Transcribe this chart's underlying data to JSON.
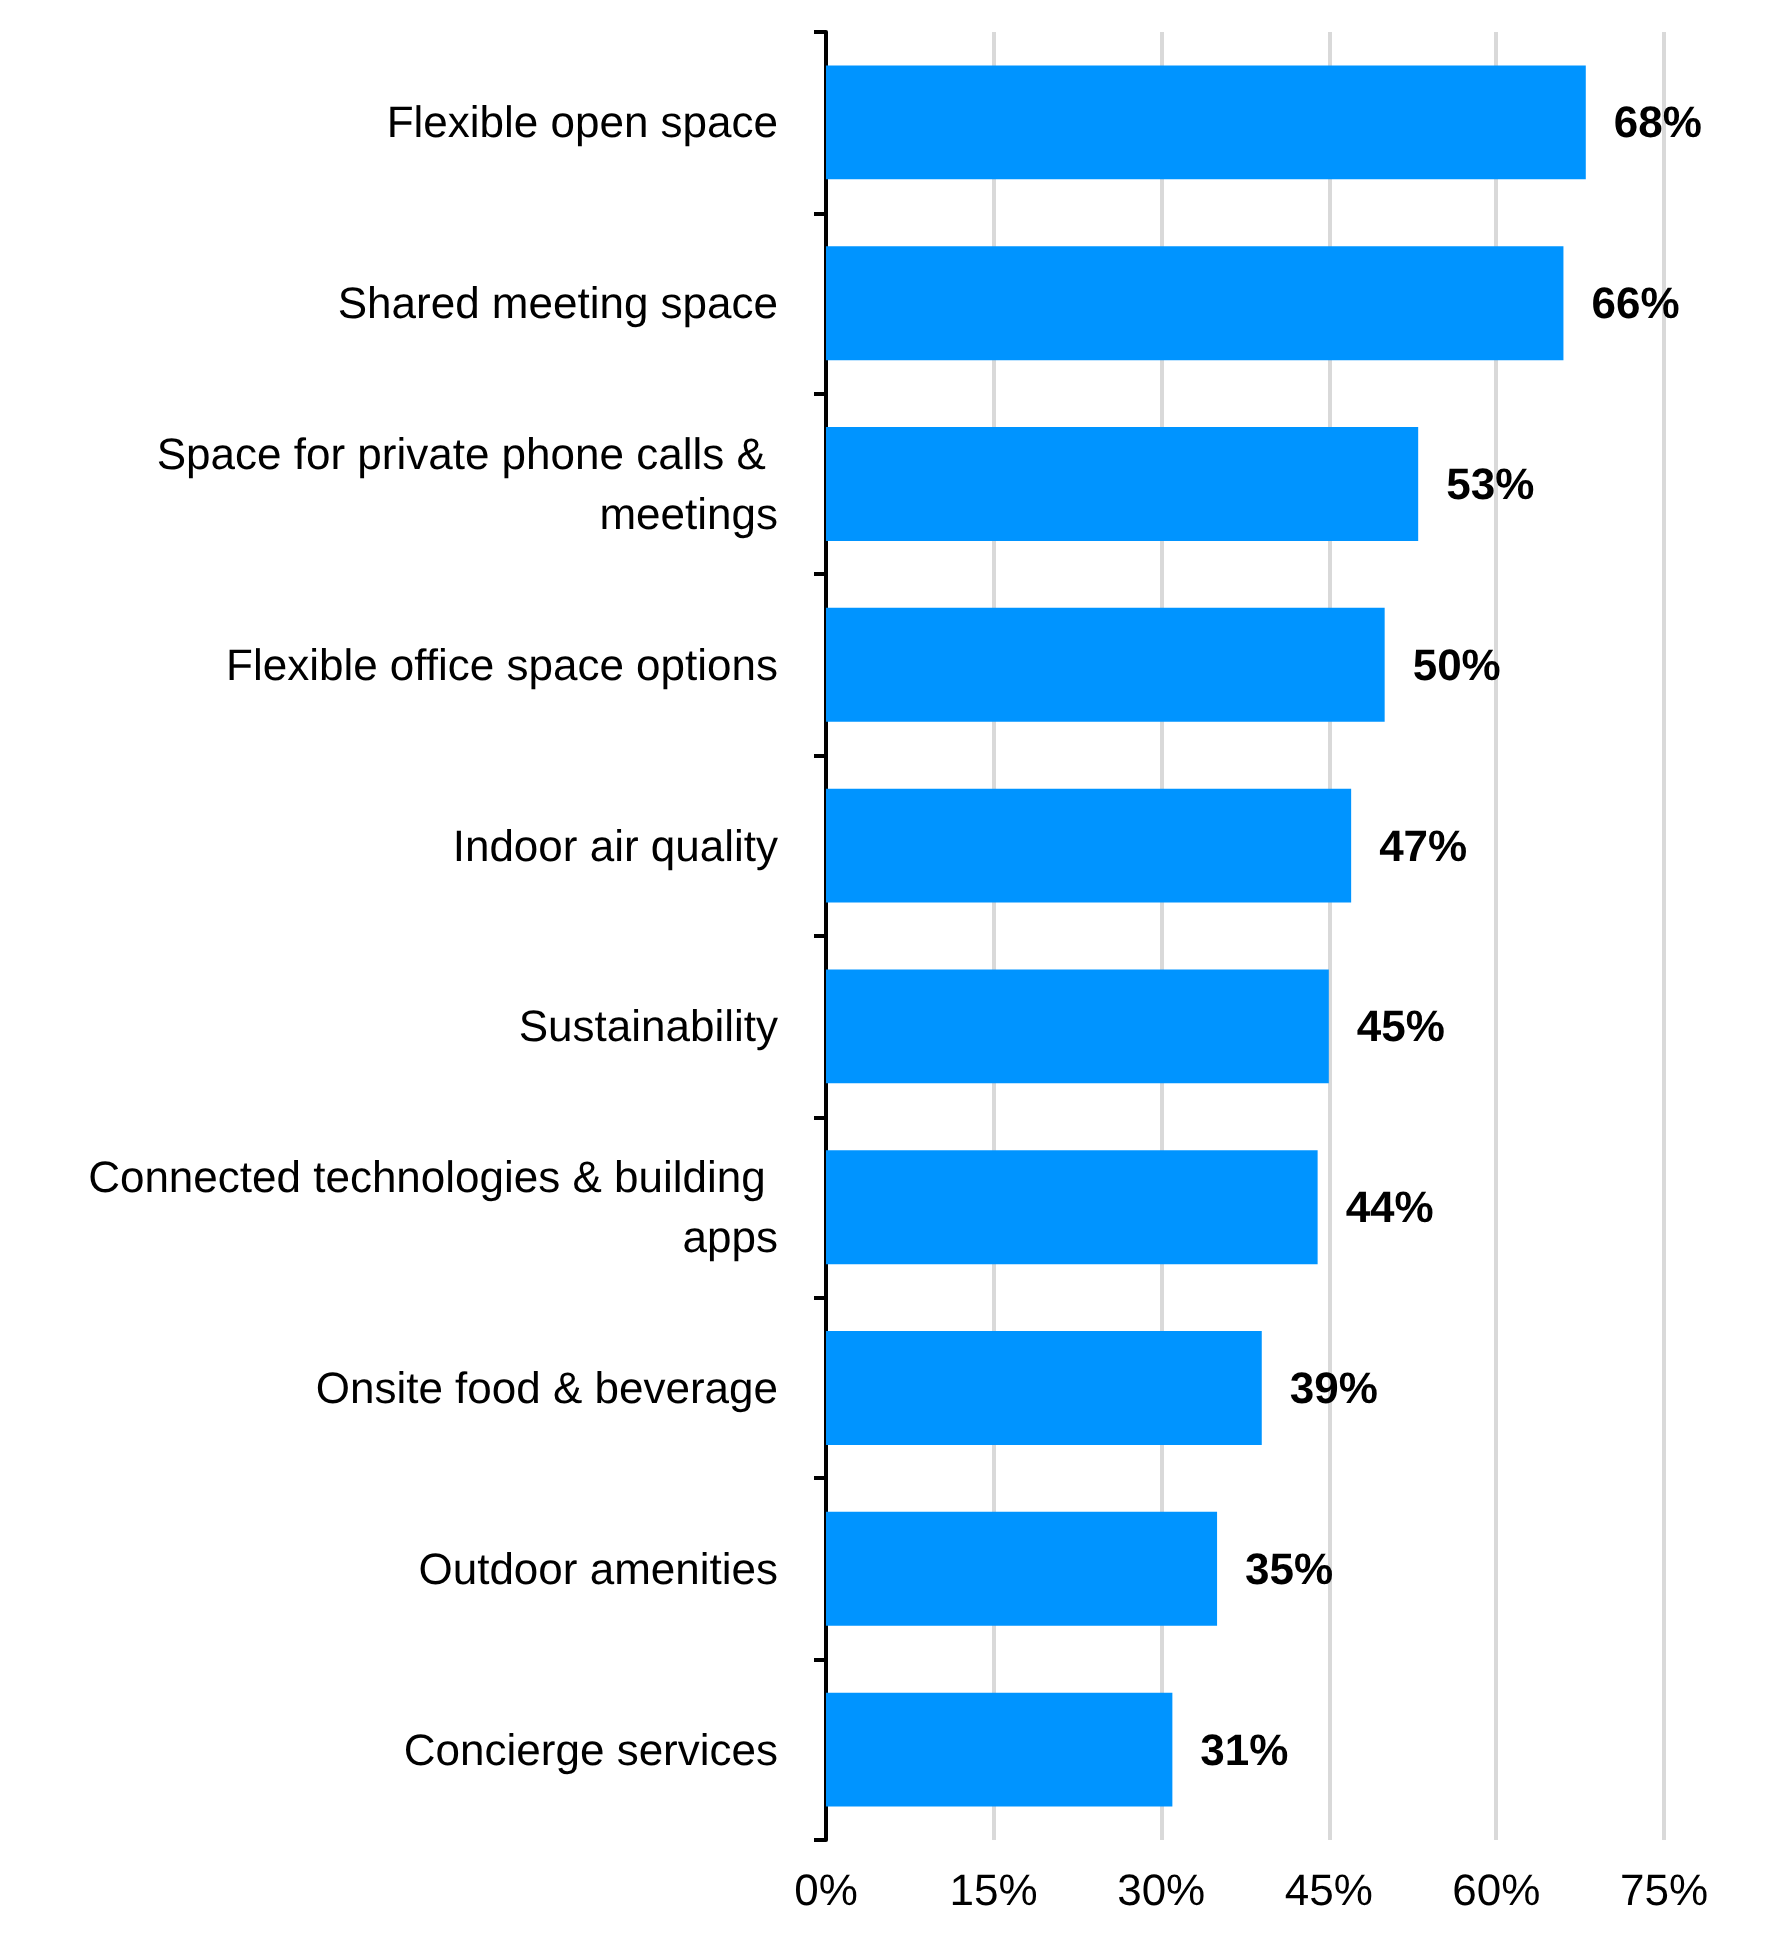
{
  "chart_data": {
    "type": "bar",
    "orientation": "horizontal",
    "categories": [
      "Flexible open space",
      "Shared meeting space",
      "Space for private phone calls & meetings",
      "Flexible office space options",
      "Indoor air quality",
      "Sustainability",
      "Connected technologies & building apps",
      "Onsite food & beverage",
      "Outdoor amenities",
      "Concierge services"
    ],
    "values": [
      68,
      66,
      53,
      50,
      47,
      45,
      44,
      39,
      35,
      31
    ],
    "value_labels": [
      "68%",
      "66%",
      "53%",
      "50%",
      "47%",
      "45%",
      "44%",
      "39%",
      "35%",
      "31%"
    ],
    "color": "#0094ff",
    "xlim": [
      0,
      75
    ],
    "xticks": [
      {
        "value": 0,
        "label": "0%"
      },
      {
        "value": 15,
        "label": "15%"
      },
      {
        "value": 30,
        "label": "30%"
      },
      {
        "value": 45,
        "label": "45%"
      },
      {
        "value": 60,
        "label": "60%"
      },
      {
        "value": 75,
        "label": "75%"
      }
    ],
    "grid": "x"
  }
}
